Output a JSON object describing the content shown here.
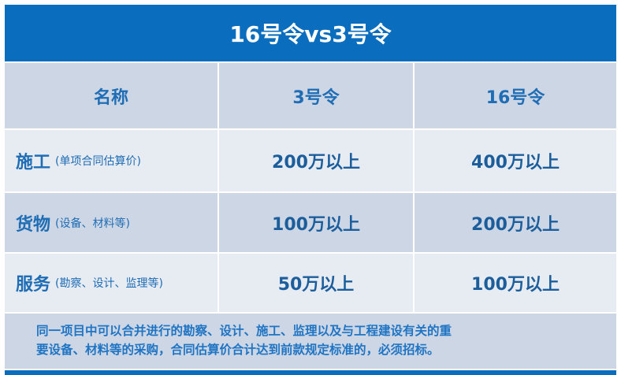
{
  "title": "16号令vs3号令",
  "headers": [
    "名称",
    "3号令",
    "16号令"
  ],
  "rows": [
    {
      "name": "施工",
      "note": "(单项合同估算价)",
      "order3": "200万以上",
      "order16": "400万以上"
    },
    {
      "name": "货物",
      "note": "(设备、材料等)",
      "order3": "100万以上",
      "order16": "200万以上"
    },
    {
      "name": "服务",
      "note": "(勘察、设计、监理等)",
      "order3": "50万以上",
      "order16": "100万以上"
    }
  ],
  "footnote": {
    "line1": "同一项目中可以合并进行的勘察、设计、施工、监理以及与工程建设有关的重",
    "line2": "要设备、材料等的采购，合同估算价合计达到前款规定标准的，必须招标。"
  },
  "colors": {
    "primary": "#0b6dbd",
    "text": "#1c5e9c",
    "row_dark": "#cdd6e4",
    "row_light": "#e7ebf2"
  }
}
